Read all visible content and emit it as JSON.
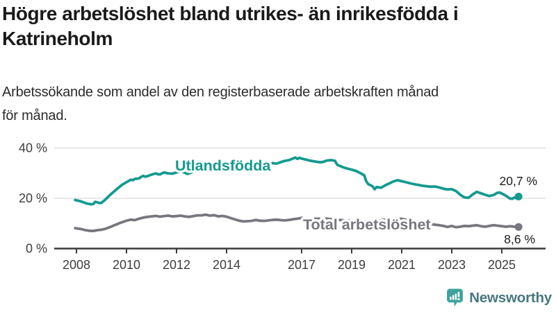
{
  "header": {
    "title": "Högre arbetslöshet bland utrikes- än inrikesfödda i\nKatrineholm",
    "subtitle": "Arbetssökande som andel av den registerbaserade arbetskraften månad\nför månad."
  },
  "chart_data": {
    "type": "line",
    "title": "Högre arbetslöshet bland utrikes- än inrikesfödda i Katrineholm",
    "subtitle": "Arbetssökande som andel av den registerbaserade arbetskraften månad för månad.",
    "grid": "horizontal",
    "x_axis": {
      "range": [
        2007.1,
        2026.8
      ],
      "ticks": [
        {
          "value": 2008,
          "label": "2008"
        },
        {
          "value": 2010,
          "label": "2010"
        },
        {
          "value": 2012,
          "label": "2012"
        },
        {
          "value": 2014,
          "label": "2014"
        },
        {
          "value": 2017,
          "label": "2017"
        },
        {
          "value": 2019,
          "label": "2019"
        },
        {
          "value": 2021,
          "label": "2021"
        },
        {
          "value": 2023,
          "label": "2023"
        },
        {
          "value": 2025,
          "label": "2025"
        }
      ]
    },
    "y_axis": {
      "range": [
        0,
        40
      ],
      "unit": "%",
      "ticks": [
        {
          "value": 0,
          "label": "0 %"
        },
        {
          "value": 20,
          "label": "20 %"
        },
        {
          "value": 40,
          "label": "40 %"
        }
      ]
    },
    "series": [
      {
        "name": "Utlandsfödda",
        "color": "#149a8f",
        "end_value": 20.7,
        "end_label": "20,7 %",
        "points": [
          [
            2007.95,
            19.3
          ],
          [
            2008.08,
            19.0
          ],
          [
            2008.17,
            18.8
          ],
          [
            2008.25,
            18.5
          ],
          [
            2008.33,
            18.2
          ],
          [
            2008.42,
            17.9
          ],
          [
            2008.5,
            17.8
          ],
          [
            2008.58,
            17.6
          ],
          [
            2008.67,
            17.7
          ],
          [
            2008.75,
            18.6
          ],
          [
            2008.83,
            18.4
          ],
          [
            2008.92,
            18.1
          ],
          [
            2009.0,
            18.2
          ],
          [
            2009.17,
            19.6
          ],
          [
            2009.33,
            21.2
          ],
          [
            2009.5,
            22.7
          ],
          [
            2009.67,
            24.1
          ],
          [
            2009.83,
            25.4
          ],
          [
            2010.0,
            26.4
          ],
          [
            2010.17,
            27.4
          ],
          [
            2010.25,
            27.2
          ],
          [
            2010.33,
            27.7
          ],
          [
            2010.5,
            27.9
          ],
          [
            2010.58,
            28.5
          ],
          [
            2010.67,
            28.9
          ],
          [
            2010.75,
            28.6
          ],
          [
            2010.83,
            28.8
          ],
          [
            2011.0,
            29.4
          ],
          [
            2011.17,
            29.9
          ],
          [
            2011.25,
            29.6
          ],
          [
            2011.33,
            29.5
          ],
          [
            2011.5,
            30.3
          ],
          [
            2011.58,
            30.1
          ],
          [
            2011.67,
            29.9
          ],
          [
            2011.83,
            29.8
          ],
          [
            2012.0,
            30.3
          ],
          [
            2012.17,
            30.7
          ],
          [
            2012.33,
            30.2
          ],
          [
            2012.42,
            29.7
          ],
          [
            2012.5,
            29.9
          ],
          [
            2012.67,
            30.5
          ],
          [
            2012.83,
            31.2
          ],
          [
            2013.0,
            31.0
          ],
          [
            2013.17,
            30.7
          ],
          [
            2013.33,
            31.0
          ],
          [
            2013.5,
            31.6
          ],
          [
            2013.67,
            32.0
          ],
          [
            2013.83,
            32.4
          ],
          [
            2014.0,
            32.1
          ],
          [
            2014.17,
            31.7
          ],
          [
            2014.33,
            31.9
          ],
          [
            2014.5,
            32.2
          ],
          [
            2014.67,
            32.5
          ],
          [
            2014.83,
            32.3
          ],
          [
            2015.0,
            32.8
          ],
          [
            2015.17,
            33.0
          ],
          [
            2015.33,
            32.7
          ],
          [
            2015.5,
            33.2
          ],
          [
            2015.67,
            33.6
          ],
          [
            2015.83,
            34.0
          ],
          [
            2016.0,
            33.8
          ],
          [
            2016.17,
            34.4
          ],
          [
            2016.33,
            34.9
          ],
          [
            2016.5,
            35.2
          ],
          [
            2016.67,
            35.9
          ],
          [
            2016.75,
            36.2
          ],
          [
            2016.83,
            35.7
          ],
          [
            2016.92,
            36.1
          ],
          [
            2017.0,
            35.8
          ],
          [
            2017.17,
            35.4
          ],
          [
            2017.33,
            35.0
          ],
          [
            2017.5,
            34.7
          ],
          [
            2017.67,
            34.4
          ],
          [
            2017.83,
            34.4
          ],
          [
            2018.0,
            35.0
          ],
          [
            2018.17,
            35.2
          ],
          [
            2018.33,
            34.9
          ],
          [
            2018.42,
            33.4
          ],
          [
            2018.5,
            33.0
          ],
          [
            2018.67,
            32.3
          ],
          [
            2018.83,
            31.8
          ],
          [
            2019.0,
            31.4
          ],
          [
            2019.17,
            30.9
          ],
          [
            2019.33,
            30.1
          ],
          [
            2019.5,
            29.2
          ],
          [
            2019.58,
            26.8
          ],
          [
            2019.67,
            25.6
          ],
          [
            2019.83,
            24.8
          ],
          [
            2019.92,
            23.6
          ],
          [
            2020.0,
            24.5
          ],
          [
            2020.17,
            24.2
          ],
          [
            2020.33,
            25.1
          ],
          [
            2020.5,
            25.9
          ],
          [
            2020.67,
            26.7
          ],
          [
            2020.83,
            27.2
          ],
          [
            2021.0,
            26.8
          ],
          [
            2021.17,
            26.4
          ],
          [
            2021.33,
            26.0
          ],
          [
            2021.5,
            25.6
          ],
          [
            2021.67,
            25.3
          ],
          [
            2021.83,
            25.0
          ],
          [
            2022.0,
            24.8
          ],
          [
            2022.17,
            24.6
          ],
          [
            2022.33,
            24.7
          ],
          [
            2022.5,
            24.3
          ],
          [
            2022.67,
            23.8
          ],
          [
            2022.83,
            23.5
          ],
          [
            2023.0,
            23.6
          ],
          [
            2023.17,
            22.9
          ],
          [
            2023.33,
            21.5
          ],
          [
            2023.5,
            20.4
          ],
          [
            2023.67,
            20.2
          ],
          [
            2023.83,
            21.5
          ],
          [
            2024.0,
            22.6
          ],
          [
            2024.17,
            22.0
          ],
          [
            2024.33,
            21.4
          ],
          [
            2024.5,
            20.9
          ],
          [
            2024.67,
            21.3
          ],
          [
            2024.83,
            22.2
          ],
          [
            2024.92,
            22.3
          ],
          [
            2025.0,
            21.9
          ],
          [
            2025.17,
            21.0
          ],
          [
            2025.33,
            19.9
          ],
          [
            2025.42,
            19.8
          ],
          [
            2025.5,
            20.3
          ],
          [
            2025.58,
            20.0
          ],
          [
            2025.67,
            20.7
          ]
        ]
      },
      {
        "name": "Total arbetslöshet",
        "color": "#78767e",
        "end_value": 8.6,
        "end_label": "8,6 %",
        "points": [
          [
            2007.95,
            8.1
          ],
          [
            2008.17,
            7.8
          ],
          [
            2008.33,
            7.4
          ],
          [
            2008.5,
            7.1
          ],
          [
            2008.67,
            7.0
          ],
          [
            2008.83,
            7.3
          ],
          [
            2009.0,
            7.5
          ],
          [
            2009.17,
            7.9
          ],
          [
            2009.33,
            8.5
          ],
          [
            2009.5,
            9.2
          ],
          [
            2009.67,
            9.9
          ],
          [
            2009.83,
            10.5
          ],
          [
            2010.0,
            11.1
          ],
          [
            2010.17,
            11.5
          ],
          [
            2010.33,
            11.3
          ],
          [
            2010.5,
            11.9
          ],
          [
            2010.67,
            12.3
          ],
          [
            2010.83,
            12.6
          ],
          [
            2011.0,
            12.8
          ],
          [
            2011.17,
            13.0
          ],
          [
            2011.33,
            12.7
          ],
          [
            2011.5,
            12.9
          ],
          [
            2011.67,
            13.1
          ],
          [
            2011.83,
            12.8
          ],
          [
            2012.0,
            12.9
          ],
          [
            2012.17,
            13.1
          ],
          [
            2012.33,
            12.8
          ],
          [
            2012.5,
            12.6
          ],
          [
            2012.67,
            12.9
          ],
          [
            2012.83,
            13.2
          ],
          [
            2013.0,
            13.2
          ],
          [
            2013.17,
            13.5
          ],
          [
            2013.33,
            13.1
          ],
          [
            2013.5,
            13.3
          ],
          [
            2013.67,
            12.8
          ],
          [
            2013.83,
            13.0
          ],
          [
            2014.0,
            12.7
          ],
          [
            2014.17,
            12.1
          ],
          [
            2014.33,
            11.6
          ],
          [
            2014.5,
            11.1
          ],
          [
            2014.67,
            10.8
          ],
          [
            2014.83,
            10.9
          ],
          [
            2015.0,
            11.0
          ],
          [
            2015.17,
            11.4
          ],
          [
            2015.33,
            11.1
          ],
          [
            2015.5,
            11.0
          ],
          [
            2015.67,
            11.2
          ],
          [
            2015.83,
            11.4
          ],
          [
            2016.0,
            11.5
          ],
          [
            2016.17,
            11.3
          ],
          [
            2016.33,
            11.2
          ],
          [
            2016.5,
            11.4
          ],
          [
            2016.67,
            11.7
          ],
          [
            2016.83,
            11.9
          ],
          [
            2017.0,
            12.2
          ],
          [
            2017.17,
            11.9
          ],
          [
            2017.33,
            11.7
          ],
          [
            2017.5,
            11.8
          ],
          [
            2017.67,
            11.9
          ],
          [
            2017.83,
            11.8
          ],
          [
            2018.0,
            11.9
          ],
          [
            2018.25,
            11.6
          ],
          [
            2018.5,
            11.4
          ],
          [
            2018.75,
            11.2
          ],
          [
            2019.0,
            11.1
          ],
          [
            2019.25,
            10.9
          ],
          [
            2019.5,
            10.7
          ],
          [
            2019.75,
            10.9
          ],
          [
            2020.0,
            11.0
          ],
          [
            2020.25,
            11.4
          ],
          [
            2020.5,
            11.8
          ],
          [
            2020.75,
            12.0
          ],
          [
            2021.0,
            11.8
          ],
          [
            2021.25,
            11.3
          ],
          [
            2021.5,
            10.8
          ],
          [
            2021.75,
            10.3
          ],
          [
            2022.0,
            10.0
          ],
          [
            2022.17,
            9.8
          ],
          [
            2022.33,
            9.5
          ],
          [
            2022.5,
            9.3
          ],
          [
            2022.67,
            9.0
          ],
          [
            2022.83,
            8.6
          ],
          [
            2023.0,
            9.0
          ],
          [
            2023.17,
            8.5
          ],
          [
            2023.33,
            8.7
          ],
          [
            2023.5,
            9.0
          ],
          [
            2023.67,
            8.9
          ],
          [
            2023.83,
            9.1
          ],
          [
            2024.0,
            9.3
          ],
          [
            2024.17,
            8.9
          ],
          [
            2024.33,
            8.7
          ],
          [
            2024.5,
            9.0
          ],
          [
            2024.67,
            9.3
          ],
          [
            2024.83,
            9.1
          ],
          [
            2025.0,
            8.9
          ],
          [
            2025.17,
            8.7
          ],
          [
            2025.33,
            8.9
          ],
          [
            2025.5,
            8.7
          ],
          [
            2025.67,
            8.6
          ]
        ]
      }
    ]
  },
  "footer": {
    "brand": "Newsworthy",
    "logo_icon": "speech-bubble-bar-chart-exclamation",
    "brand_color": "#47787e",
    "icon_color": "#3da39c"
  }
}
